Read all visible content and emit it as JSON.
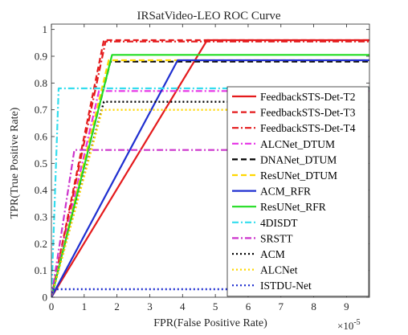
{
  "chart_data": {
    "type": "line",
    "title": "IRSatVideo-LEO ROC Curve",
    "xlabel": "FPR(False Positive Rate)",
    "ylabel": "TPR(True Positive Rate)",
    "x_exponent_label": "×10",
    "x_exponent_power": "-5",
    "xlim": [
      0,
      9.7
    ],
    "ylim": [
      0,
      1.02
    ],
    "x_ticks": [
      0,
      1,
      2,
      3,
      4,
      5,
      6,
      7,
      8,
      9
    ],
    "y_ticks": [
      0,
      0.1,
      0.2,
      0.3,
      0.4,
      0.5,
      0.6,
      0.7,
      0.8,
      0.9,
      1
    ],
    "x_tick_labels": [
      "0",
      "1",
      "2",
      "3",
      "4",
      "5",
      "6",
      "7",
      "8",
      "9"
    ],
    "y_tick_labels": [
      "0",
      "0.1",
      "0.2",
      "0.3",
      "0.4",
      "0.5",
      "0.6",
      "0.7",
      "0.8",
      "0.9",
      "1"
    ],
    "grid": false,
    "legend_position": "right",
    "series": [
      {
        "name": "FeedbackSTS-Det-T2",
        "color": "#e41a1c",
        "dash": "solid",
        "x": [
          0,
          4.75,
          9.7
        ],
        "y": [
          0,
          0.96,
          0.96
        ]
      },
      {
        "name": "FeedbackSTS-Det-T3",
        "color": "#e41a1c",
        "dash": "dashed",
        "x": [
          0,
          1.6,
          9.7
        ],
        "y": [
          0,
          0.96,
          0.96
        ]
      },
      {
        "name": "FeedbackSTS-Det-T4",
        "color": "#e41a1c",
        "dash": "dashdot",
        "x": [
          0,
          1.65,
          9.7
        ],
        "y": [
          0,
          0.955,
          0.955
        ]
      },
      {
        "name": "ALCNet_DTUM",
        "color": "#e632e6",
        "dash": "dashdot",
        "x": [
          0,
          1.45,
          9.7
        ],
        "y": [
          0,
          0.77,
          0.77
        ]
      },
      {
        "name": "DNANet_DTUM",
        "color": "#000000",
        "dash": "dashed",
        "x": [
          0,
          1.8,
          9.7
        ],
        "y": [
          0,
          0.88,
          0.88
        ]
      },
      {
        "name": "ResUNet_DTUM",
        "color": "#ffd700",
        "dash": "dashed",
        "x": [
          0,
          1.75,
          9.7
        ],
        "y": [
          0,
          0.885,
          0.885
        ]
      },
      {
        "name": "ACM_RFR",
        "color": "#1f2fd0",
        "dash": "solid",
        "x": [
          0,
          3.85,
          9.7
        ],
        "y": [
          0,
          0.885,
          0.885
        ]
      },
      {
        "name": "ResUNet_RFR",
        "color": "#22dd22",
        "dash": "solid",
        "x": [
          0,
          1.85,
          9.7
        ],
        "y": [
          0,
          0.905,
          0.905
        ]
      },
      {
        "name": "4DISDT",
        "color": "#33ddee",
        "dash": "dashdot",
        "x": [
          0,
          0.22,
          9.7
        ],
        "y": [
          0,
          0.78,
          0.78
        ]
      },
      {
        "name": "SRSTT",
        "color": "#cc33cc",
        "dash": "dashdot",
        "x": [
          0,
          0.7,
          9.7
        ],
        "y": [
          0,
          0.55,
          0.55
        ]
      },
      {
        "name": "ACM",
        "color": "#000000",
        "dash": "dotted",
        "x": [
          0,
          1.6,
          9.7
        ],
        "y": [
          0,
          0.73,
          0.73
        ]
      },
      {
        "name": "ALCNet",
        "color": "#ffd700",
        "dash": "dotted",
        "x": [
          0,
          1.55,
          9.7
        ],
        "y": [
          0,
          0.7,
          0.7
        ]
      },
      {
        "name": "ISTDU-Net",
        "color": "#1f2fd0",
        "dash": "dotted",
        "x": [
          0,
          0.05,
          9.7
        ],
        "y": [
          0,
          0.03,
          0.03
        ]
      }
    ]
  }
}
